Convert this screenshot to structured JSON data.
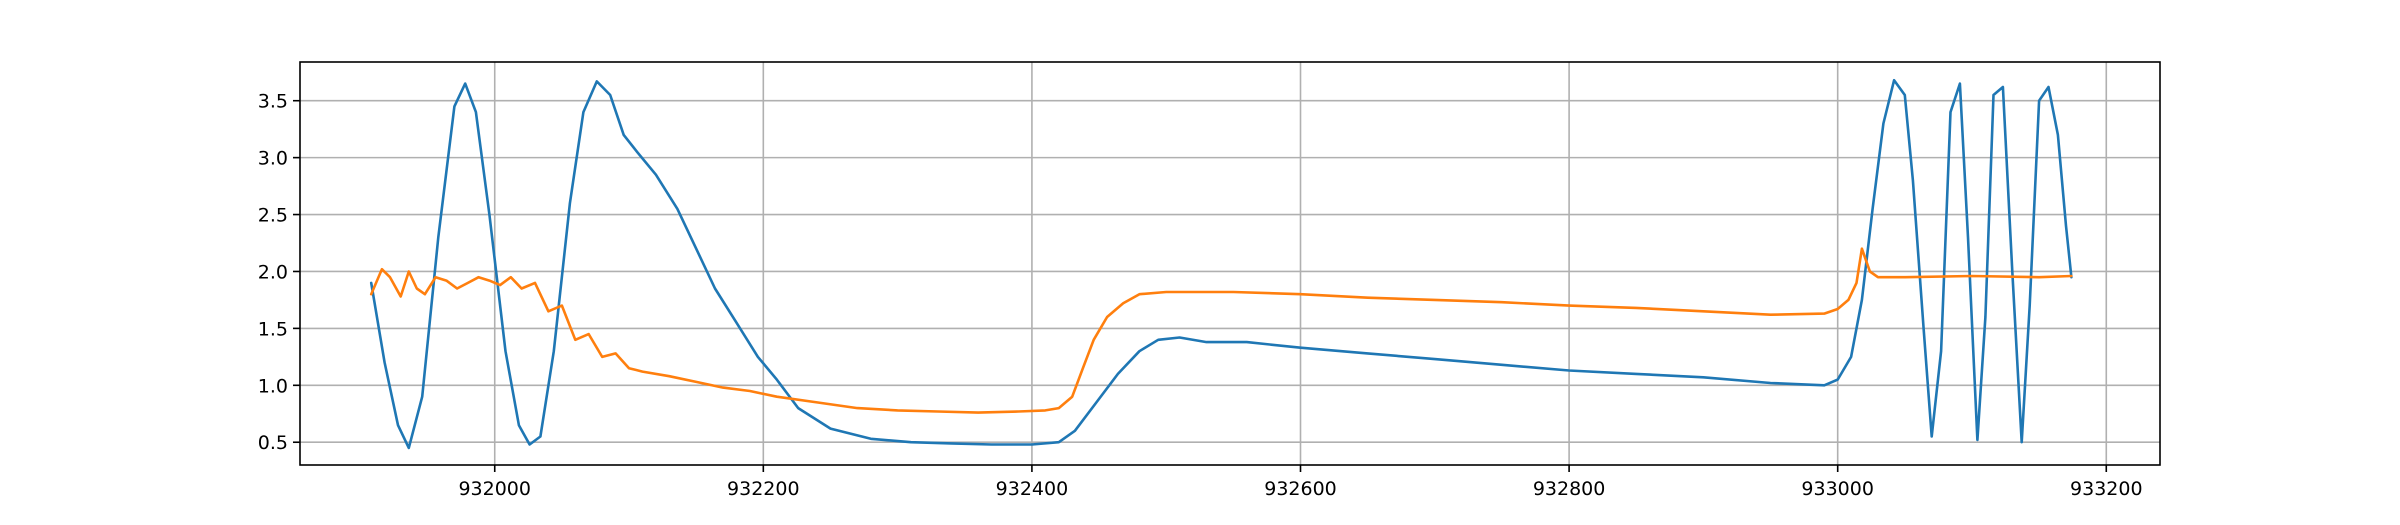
{
  "chart_data": {
    "type": "line",
    "title": "",
    "xlabel": "",
    "ylabel": "",
    "xlim": [
      931855,
      933240
    ],
    "ylim": [
      0.3,
      3.84
    ],
    "grid": true,
    "legend": "none",
    "x_ticks": [
      {
        "value": 932000,
        "label": "932000"
      },
      {
        "value": 932200,
        "label": "932200"
      },
      {
        "value": 932400,
        "label": "932400"
      },
      {
        "value": 932600,
        "label": "932600"
      },
      {
        "value": 932800,
        "label": "932800"
      },
      {
        "value": 933000,
        "label": "933000"
      },
      {
        "value": 933200,
        "label": "933200"
      }
    ],
    "y_ticks": [
      {
        "value": 0.5,
        "label": "0.5"
      },
      {
        "value": 1.0,
        "label": "1.0"
      },
      {
        "value": 1.5,
        "label": "1.5"
      },
      {
        "value": 2.0,
        "label": "2.0"
      },
      {
        "value": 2.5,
        "label": "2.5"
      },
      {
        "value": 3.0,
        "label": "3.0"
      },
      {
        "value": 3.5,
        "label": "3.5"
      }
    ],
    "series": [
      {
        "color": "#1f77b4",
        "x": [
          931908,
          931918,
          931928,
          931936,
          931946,
          931958,
          931970,
          931978,
          931986,
          931996,
          932008,
          932018,
          932026,
          932034,
          932044,
          932056,
          932066,
          932076,
          932086,
          932096,
          932106,
          932120,
          932136,
          932150,
          932164,
          932180,
          932196,
          932210,
          932226,
          932250,
          932280,
          932310,
          932340,
          932370,
          932400,
          932420,
          932432,
          932448,
          932464,
          932480,
          932494,
          932510,
          932530,
          932560,
          932600,
          932650,
          932700,
          932750,
          932800,
          932850,
          932900,
          932950,
          932990,
          933000,
          933010,
          933018,
          933026,
          933034,
          933042,
          933050,
          933056,
          933064,
          933070,
          933077,
          933084,
          933091,
          933097,
          933104,
          933110,
          933116,
          933123,
          933130,
          933137,
          933143,
          933150,
          933157,
          933164,
          933170,
          933174
        ],
        "y": [
          1.9,
          1.2,
          0.65,
          0.45,
          0.9,
          2.3,
          3.45,
          3.65,
          3.4,
          2.5,
          1.3,
          0.65,
          0.48,
          0.55,
          1.3,
          2.6,
          3.4,
          3.67,
          3.55,
          3.2,
          3.05,
          2.85,
          2.55,
          2.2,
          1.85,
          1.55,
          1.25,
          1.05,
          0.8,
          0.62,
          0.53,
          0.5,
          0.49,
          0.48,
          0.48,
          0.5,
          0.6,
          0.85,
          1.1,
          1.3,
          1.4,
          1.42,
          1.38,
          1.38,
          1.33,
          1.28,
          1.23,
          1.18,
          1.13,
          1.1,
          1.07,
          1.02,
          1.0,
          1.05,
          1.25,
          1.75,
          2.55,
          3.3,
          3.68,
          3.55,
          2.8,
          1.5,
          0.55,
          1.3,
          3.4,
          3.65,
          2.3,
          0.52,
          1.6,
          3.55,
          3.62,
          2.0,
          0.5,
          1.7,
          3.5,
          3.62,
          3.2,
          2.4,
          1.95
        ]
      },
      {
        "color": "#ff7f0e",
        "x": [
          931908,
          931916,
          931922,
          931930,
          931936,
          931942,
          931948,
          931956,
          931964,
          931972,
          931980,
          931988,
          931996,
          932004,
          932012,
          932020,
          932030,
          932040,
          932050,
          932060,
          932070,
          932080,
          932090,
          932100,
          932110,
          932130,
          932150,
          932170,
          932190,
          932210,
          932240,
          932270,
          932300,
          932330,
          932360,
          932390,
          932410,
          932420,
          932430,
          932438,
          932446,
          932456,
          932468,
          932480,
          932500,
          932550,
          932600,
          932650,
          932700,
          932750,
          932800,
          932850,
          932900,
          932950,
          932990,
          933000,
          933008,
          933014,
          933018,
          933024,
          933030,
          933050,
          933100,
          933150,
          933174
        ],
        "y": [
          1.8,
          2.02,
          1.95,
          1.78,
          2.0,
          1.85,
          1.8,
          1.95,
          1.92,
          1.85,
          1.9,
          1.95,
          1.92,
          1.88,
          1.95,
          1.85,
          1.9,
          1.65,
          1.7,
          1.4,
          1.45,
          1.25,
          1.28,
          1.15,
          1.12,
          1.08,
          1.03,
          0.98,
          0.95,
          0.9,
          0.85,
          0.8,
          0.78,
          0.77,
          0.76,
          0.77,
          0.78,
          0.8,
          0.9,
          1.15,
          1.4,
          1.6,
          1.72,
          1.8,
          1.82,
          1.82,
          1.8,
          1.77,
          1.75,
          1.73,
          1.7,
          1.68,
          1.65,
          1.62,
          1.63,
          1.67,
          1.75,
          1.9,
          2.2,
          2.0,
          1.95,
          1.95,
          1.96,
          1.95,
          1.96
        ]
      }
    ]
  }
}
